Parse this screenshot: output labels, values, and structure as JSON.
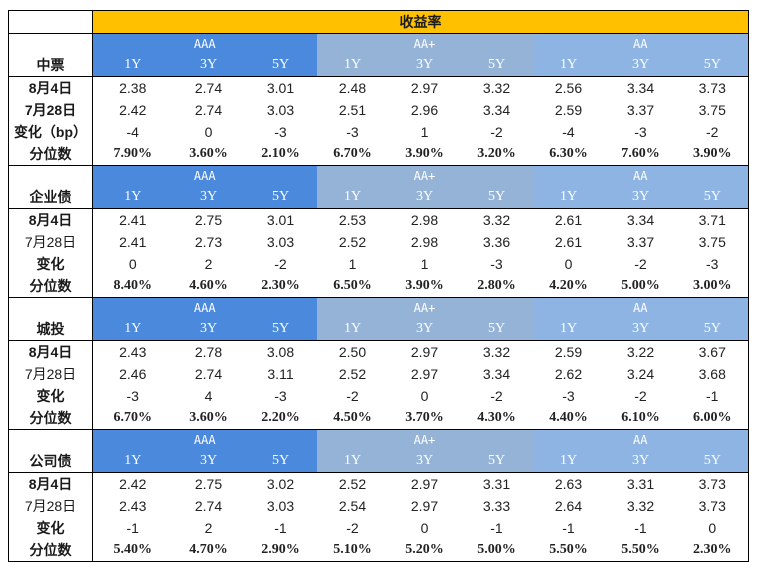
{
  "title": "收益率",
  "groups": [
    "AAA",
    "AA+",
    "AA"
  ],
  "tenors": [
    "1Y",
    "3Y",
    "5Y"
  ],
  "sections": [
    {
      "name": "中票",
      "rows": [
        {
          "label": "8月4日",
          "bold": true,
          "pct": false,
          "values": [
            "2.38",
            "2.74",
            "3.01",
            "2.48",
            "2.97",
            "3.32",
            "2.56",
            "3.34",
            "3.73"
          ]
        },
        {
          "label": "7月28日",
          "bold": true,
          "pct": false,
          "values": [
            "2.42",
            "2.74",
            "3.03",
            "2.51",
            "2.96",
            "3.34",
            "2.59",
            "3.37",
            "3.75"
          ]
        },
        {
          "label": "变化（bp）",
          "bold": true,
          "pct": false,
          "values": [
            "-4",
            "0",
            "-3",
            "-3",
            "1",
            "-2",
            "-4",
            "-3",
            "-2"
          ]
        },
        {
          "label": "分位数",
          "bold": true,
          "pct": true,
          "values": [
            "7.90%",
            "3.60%",
            "2.10%",
            "6.70%",
            "3.90%",
            "3.20%",
            "6.30%",
            "7.60%",
            "3.90%"
          ]
        }
      ]
    },
    {
      "name": "企业债",
      "rows": [
        {
          "label": "8月4日",
          "bold": true,
          "pct": false,
          "values": [
            "2.41",
            "2.75",
            "3.01",
            "2.53",
            "2.98",
            "3.32",
            "2.61",
            "3.34",
            "3.71"
          ]
        },
        {
          "label": "7月28日",
          "bold": false,
          "pct": false,
          "values": [
            "2.41",
            "2.73",
            "3.03",
            "2.52",
            "2.98",
            "3.36",
            "2.61",
            "3.37",
            "3.75"
          ]
        },
        {
          "label": "变化",
          "bold": true,
          "pct": false,
          "values": [
            "0",
            "2",
            "-2",
            "1",
            "1",
            "-3",
            "0",
            "-2",
            "-3"
          ]
        },
        {
          "label": "分位数",
          "bold": true,
          "pct": true,
          "values": [
            "8.40%",
            "4.60%",
            "2.30%",
            "6.50%",
            "3.90%",
            "2.80%",
            "4.20%",
            "5.00%",
            "3.00%"
          ]
        }
      ]
    },
    {
      "name": "城投",
      "rows": [
        {
          "label": "8月4日",
          "bold": true,
          "pct": false,
          "values": [
            "2.43",
            "2.78",
            "3.08",
            "2.50",
            "2.97",
            "3.32",
            "2.59",
            "3.22",
            "3.67"
          ]
        },
        {
          "label": "7月28日",
          "bold": false,
          "pct": false,
          "values": [
            "2.46",
            "2.74",
            "3.11",
            "2.52",
            "2.97",
            "3.34",
            "2.62",
            "3.24",
            "3.68"
          ]
        },
        {
          "label": "变化",
          "bold": true,
          "pct": false,
          "values": [
            "-3",
            "4",
            "-3",
            "-2",
            "0",
            "-2",
            "-3",
            "-2",
            "-1"
          ]
        },
        {
          "label": "分位数",
          "bold": true,
          "pct": true,
          "values": [
            "6.70%",
            "3.60%",
            "2.20%",
            "4.50%",
            "3.70%",
            "4.30%",
            "4.40%",
            "6.10%",
            "6.00%"
          ]
        }
      ]
    },
    {
      "name": "公司债",
      "rows": [
        {
          "label": "8月4日",
          "bold": true,
          "pct": false,
          "values": [
            "2.42",
            "2.75",
            "3.02",
            "2.52",
            "2.97",
            "3.31",
            "2.63",
            "3.31",
            "3.73"
          ]
        },
        {
          "label": "7月28日",
          "bold": false,
          "pct": false,
          "values": [
            "2.43",
            "2.74",
            "3.03",
            "2.54",
            "2.97",
            "3.33",
            "2.64",
            "3.32",
            "3.73"
          ]
        },
        {
          "label": "变化",
          "bold": true,
          "pct": false,
          "values": [
            "-1",
            "2",
            "-1",
            "-2",
            "0",
            "-1",
            "-1",
            "-1",
            "0"
          ]
        },
        {
          "label": "分位数",
          "bold": true,
          "pct": true,
          "values": [
            "5.40%",
            "4.70%",
            "2.90%",
            "5.10%",
            "5.20%",
            "5.00%",
            "5.50%",
            "5.50%",
            "2.30%"
          ]
        }
      ]
    }
  ]
}
